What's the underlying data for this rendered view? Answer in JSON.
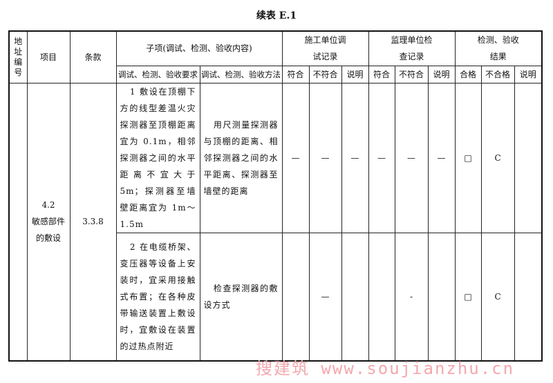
{
  "title": "续表 E.1",
  "header": {
    "address_no": "地址编号",
    "item": "项目",
    "clause": "条款",
    "subitem": "子项(调试、检测、验收内容)",
    "requirement": "调试、检测、验收要求",
    "method": "调试、检测、验收方法",
    "construction": "施工单位调试记录",
    "supervision": "监理单位检查记录",
    "result": "检测、验收结果",
    "conform": "符合",
    "nonconform": "不符合",
    "note": "说明",
    "pass": "合格",
    "fail": "不合格"
  },
  "item": {
    "no": "4.2",
    "name": "敏感部件的敷设",
    "clause": "3.3.8"
  },
  "rows": [
    {
      "requirement": "1 敷设在顶棚下方的线型差温火灾探测器至顶棚距离宜为 0.1m，相邻探测器之间的水平距离不宜大于 5m；探测器至墙壁距离宜为 1m～1.5m",
      "method": "用尺测量探测器与顶棚的距离、相邻探测器之间的水平距离、探测器至墙壁的距离",
      "c_conform": "—",
      "c_nonconform": "—",
      "c_note": "—",
      "s_conform": "—",
      "s_nonconform": "—",
      "s_note": "—",
      "pass": "□",
      "fail": "C",
      "note": ""
    },
    {
      "requirement": "2 在电缆桥架、变压器等设备上安装时，宜采用接触式布置；在各种皮带输送装置上敷设时，宜敷设在装置的过热点附近",
      "method": "检查探测器的敷设方式",
      "c_conform": "",
      "c_nonconform": "—",
      "c_note": "",
      "s_conform": "",
      "s_nonconform": "-",
      "s_note": "",
      "pass": "□",
      "fail": "C",
      "note": ""
    }
  ],
  "watermark": "搜建筑 www.soujianzhu.cn"
}
